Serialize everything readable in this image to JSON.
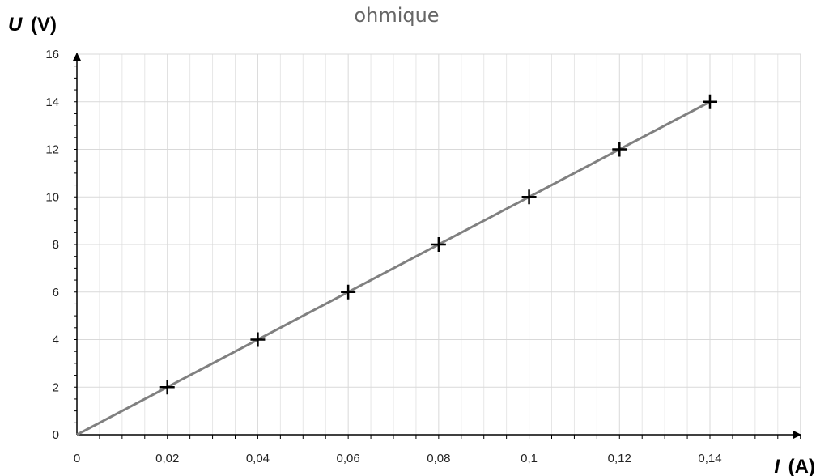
{
  "chart_data": {
    "type": "scatter",
    "title": "ohmique",
    "ylabel_symbol": "U",
    "ylabel_unit": "(V)",
    "xlabel_symbol": "I",
    "xlabel_unit": "(A)",
    "xlim": [
      0,
      0.16
    ],
    "ylim": [
      0,
      16
    ],
    "x_ticks": [
      "0",
      "0,02",
      "0,04",
      "0,06",
      "0,08",
      "0,1",
      "0,12",
      "0,14"
    ],
    "x_tick_values": [
      0,
      0.02,
      0.04,
      0.06,
      0.08,
      0.1,
      0.12,
      0.14
    ],
    "y_ticks": [
      "0",
      "2",
      "4",
      "6",
      "8",
      "10",
      "12",
      "14",
      "16"
    ],
    "y_tick_values": [
      0,
      2,
      4,
      6,
      8,
      10,
      12,
      14,
      16
    ],
    "grid": true,
    "series": [
      {
        "marker": "plus",
        "x": [
          0.02,
          0.04,
          0.06,
          0.08,
          0.1,
          0.12,
          0.14
        ],
        "y": [
          2,
          4,
          6,
          8,
          10,
          12,
          14
        ],
        "color": "#000000"
      }
    ],
    "trendline": {
      "x": [
        0,
        0.14
      ],
      "y": [
        0,
        14
      ],
      "color": "#808080"
    }
  }
}
